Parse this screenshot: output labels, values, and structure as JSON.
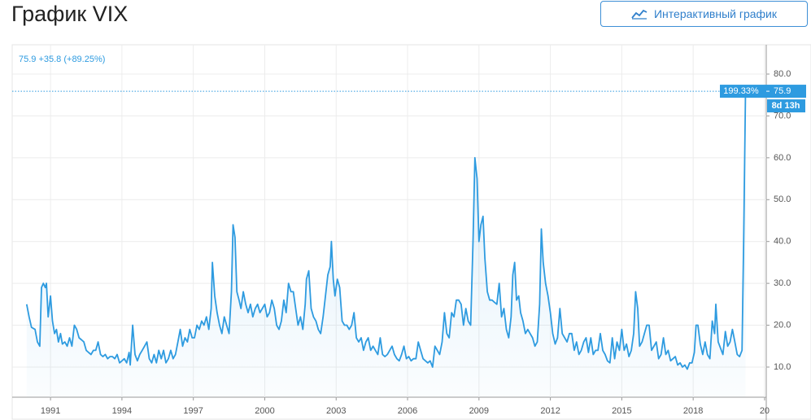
{
  "page_title": "График VIX",
  "button": "Интерактивный график",
  "chart_data": {
    "type": "line",
    "legend_text": "75.9 +35.8 (+89.25%)",
    "price_tag": "199.33%",
    "countdown": "8d 13h",
    "color": "#2e9be0",
    "grid": true,
    "xlim": [
      1989.39,
      2021.07
    ],
    "ylim": [
      2.8,
      87
    ],
    "xticks": [
      1991,
      1994,
      1997,
      2000,
      2003,
      2006,
      2009,
      2012,
      2015,
      2018,
      {
        "value": 2021,
        "label": "20"
      }
    ],
    "yticks": [
      {
        "value": 10,
        "label": "10.0"
      },
      {
        "value": 20,
        "label": "20.0"
      },
      {
        "value": 30,
        "label": "30.0"
      },
      {
        "value": 40,
        "label": "40.0"
      },
      {
        "value": 50,
        "label": "50.0"
      },
      {
        "value": 60,
        "label": "60.0"
      },
      {
        "value": 70,
        "label": "70.0"
      },
      {
        "value": 80,
        "label": "80.0"
      }
    ],
    "x": [
      1990.0,
      1990.1,
      1990.2,
      1990.35,
      1990.45,
      1990.55,
      1990.62,
      1990.7,
      1990.78,
      1990.83,
      1990.9,
      1991.0,
      1991.08,
      1991.17,
      1991.25,
      1991.33,
      1991.42,
      1991.5,
      1991.6,
      1991.7,
      1991.8,
      1991.9,
      1992.0,
      1992.1,
      1992.2,
      1992.3,
      1992.4,
      1992.5,
      1992.6,
      1992.7,
      1992.8,
      1992.9,
      1993.0,
      1993.1,
      1993.2,
      1993.3,
      1993.4,
      1993.5,
      1993.6,
      1993.7,
      1993.8,
      1993.9,
      1994.0,
      1994.1,
      1994.2,
      1994.3,
      1994.35,
      1994.45,
      1994.55,
      1994.65,
      1994.75,
      1994.85,
      1994.95,
      1995.05,
      1995.15,
      1995.25,
      1995.35,
      1995.45,
      1995.55,
      1995.65,
      1995.75,
      1995.85,
      1995.95,
      1996.05,
      1996.15,
      1996.25,
      1996.35,
      1996.45,
      1996.55,
      1996.65,
      1996.75,
      1996.85,
      1996.95,
      1997.05,
      1997.15,
      1997.25,
      1997.35,
      1997.45,
      1997.55,
      1997.65,
      1997.75,
      1997.8,
      1997.9,
      1998.0,
      1998.1,
      1998.2,
      1998.3,
      1998.4,
      1998.5,
      1998.6,
      1998.67,
      1998.75,
      1998.83,
      1998.92,
      1999.0,
      1999.1,
      1999.2,
      1999.3,
      1999.4,
      1999.5,
      1999.6,
      1999.7,
      1999.8,
      1999.9,
      2000.0,
      2000.1,
      2000.2,
      2000.3,
      2000.4,
      2000.5,
      2000.6,
      2000.7,
      2000.8,
      2000.9,
      2001.0,
      2001.1,
      2001.2,
      2001.3,
      2001.4,
      2001.5,
      2001.6,
      2001.7,
      2001.75,
      2001.85,
      2001.95,
      2002.05,
      2002.15,
      2002.25,
      2002.35,
      2002.45,
      2002.55,
      2002.65,
      2002.75,
      2002.8,
      2002.88,
      2002.95,
      2003.05,
      2003.15,
      2003.25,
      2003.35,
      2003.45,
      2003.55,
      2003.65,
      2003.75,
      2003.85,
      2003.95,
      2004.05,
      2004.15,
      2004.25,
      2004.35,
      2004.45,
      2004.55,
      2004.65,
      2004.75,
      2004.85,
      2004.95,
      2005.05,
      2005.15,
      2005.25,
      2005.35,
      2005.45,
      2005.55,
      2005.65,
      2005.75,
      2005.85,
      2005.95,
      2006.05,
      2006.15,
      2006.25,
      2006.35,
      2006.45,
      2006.55,
      2006.65,
      2006.75,
      2006.85,
      2006.95,
      2007.05,
      2007.15,
      2007.25,
      2007.35,
      2007.45,
      2007.55,
      2007.65,
      2007.75,
      2007.85,
      2007.95,
      2008.05,
      2008.15,
      2008.25,
      2008.35,
      2008.45,
      2008.55,
      2008.65,
      2008.75,
      2008.83,
      2008.92,
      2009.0,
      2009.08,
      2009.17,
      2009.25,
      2009.35,
      2009.45,
      2009.55,
      2009.65,
      2009.75,
      2009.85,
      2009.95,
      2010.05,
      2010.15,
      2010.25,
      2010.35,
      2010.42,
      2010.5,
      2010.58,
      2010.67,
      2010.75,
      2010.85,
      2010.95,
      2011.05,
      2011.15,
      2011.25,
      2011.35,
      2011.45,
      2011.55,
      2011.62,
      2011.7,
      2011.8,
      2011.9,
      2012.0,
      2012.1,
      2012.2,
      2012.3,
      2012.4,
      2012.5,
      2012.6,
      2012.7,
      2012.8,
      2012.9,
      2013.0,
      2013.1,
      2013.2,
      2013.3,
      2013.4,
      2013.5,
      2013.6,
      2013.7,
      2013.8,
      2013.9,
      2014.0,
      2014.1,
      2014.2,
      2014.3,
      2014.4,
      2014.5,
      2014.6,
      2014.7,
      2014.8,
      2014.9,
      2015.0,
      2015.1,
      2015.2,
      2015.3,
      2015.4,
      2015.5,
      2015.58,
      2015.67,
      2015.75,
      2015.85,
      2015.95,
      2016.05,
      2016.15,
      2016.25,
      2016.35,
      2016.45,
      2016.55,
      2016.65,
      2016.75,
      2016.85,
      2016.95,
      2017.05,
      2017.15,
      2017.25,
      2017.35,
      2017.45,
      2017.55,
      2017.65,
      2017.75,
      2017.85,
      2017.95,
      2018.05,
      2018.12,
      2018.2,
      2018.3,
      2018.4,
      2018.5,
      2018.6,
      2018.7,
      2018.8,
      2018.9,
      2018.95,
      2019.05,
      2019.15,
      2019.25,
      2019.35,
      2019.45,
      2019.55,
      2019.65,
      2019.75,
      2019.85,
      2019.95,
      2020.05,
      2020.12,
      2020.2
    ],
    "values": [
      25,
      22,
      19.5,
      19,
      16,
      15,
      29,
      30,
      29,
      30,
      22,
      27,
      21,
      18,
      19,
      16,
      18,
      15.5,
      16,
      15,
      17,
      15,
      20,
      19,
      17,
      16.5,
      16,
      14,
      13.5,
      13,
      14,
      14,
      16,
      13,
      12.5,
      13,
      12,
      12.5,
      12.5,
      12,
      13,
      11,
      11.5,
      12,
      11,
      13.5,
      10.5,
      20,
      13,
      11.5,
      13,
      14,
      15,
      16,
      12,
      11,
      13,
      11,
      14,
      12,
      14,
      11,
      12,
      14,
      12,
      13,
      16,
      19,
      15,
      17,
      16,
      19,
      17,
      17,
      20,
      19,
      21,
      20,
      22,
      19,
      24,
      35,
      27,
      23,
      20,
      18,
      22,
      20,
      18,
      28,
      44,
      41,
      28,
      26,
      24,
      28,
      25,
      23,
      25,
      22,
      24,
      25,
      23,
      24,
      25,
      22,
      23,
      26,
      24,
      20,
      19,
      21,
      26,
      23,
      30,
      28,
      28,
      24,
      20,
      22,
      19,
      25,
      31,
      33,
      24,
      22,
      21,
      19,
      18,
      22,
      27,
      32,
      34,
      40,
      31,
      27,
      31,
      29,
      21,
      20,
      20,
      19,
      20,
      23,
      17,
      16,
      17,
      14,
      16,
      17,
      14,
      15,
      14,
      13,
      17,
      13,
      12.5,
      13,
      14,
      15,
      13,
      12,
      11.5,
      13,
      15,
      12,
      12.5,
      11.5,
      12,
      12,
      16,
      14,
      12,
      11.5,
      11,
      11.5,
      10,
      15,
      14,
      13,
      16,
      23,
      18,
      17,
      23,
      22,
      26,
      26,
      25,
      20,
      24,
      21,
      20,
      40,
      60,
      55,
      40,
      44,
      46,
      36,
      28,
      26,
      26,
      25.5,
      25,
      30,
      22,
      24,
      19,
      17,
      22,
      32,
      35,
      26,
      27,
      23,
      21,
      18,
      19,
      18,
      17,
      15,
      16,
      25,
      43,
      35,
      30,
      27,
      23,
      18,
      15.5,
      17,
      24,
      18,
      17,
      16,
      18,
      18,
      14,
      16,
      13,
      14,
      16,
      17,
      13.5,
      17,
      13,
      14,
      14,
      18,
      14,
      13,
      11.5,
      11,
      17,
      12,
      16,
      14,
      19,
      14,
      15.5,
      12.5,
      14,
      18,
      28,
      24,
      15,
      16,
      18,
      20,
      20,
      14,
      15,
      16,
      12,
      13,
      17,
      13,
      14,
      11.5,
      12,
      12.5,
      10.5,
      11,
      10,
      10.5,
      9.5,
      11,
      11,
      13.5,
      20,
      20,
      15.5,
      13,
      16,
      13,
      12,
      21,
      18,
      25,
      16,
      14.5,
      13,
      18.5,
      15,
      16,
      19,
      16,
      13,
      12.5,
      14,
      40,
      75.9
    ]
  }
}
